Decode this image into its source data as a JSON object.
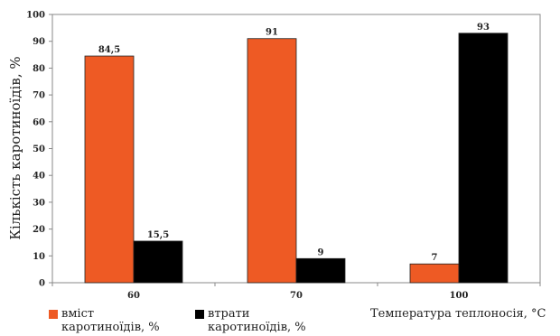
{
  "chart_data": {
    "type": "bar",
    "categories": [
      "60",
      "70",
      "100"
    ],
    "series": [
      {
        "name": "вміст каротиноїдів, %",
        "values": [
          84.5,
          91,
          7
        ],
        "labels": [
          "84,5",
          "91",
          "7"
        ],
        "color": "#ee5a24"
      },
      {
        "name": "втрати каротиноїдів, %",
        "values": [
          15.5,
          9,
          93
        ],
        "labels": [
          "15,5",
          "9",
          "93"
        ],
        "color": "#000000"
      }
    ],
    "ylabel": "Кількість каротиноїдів, %",
    "xlabel": "Температура теплоносія, °C",
    "ylim": [
      0,
      100
    ],
    "yticks": [
      0,
      10,
      20,
      30,
      40,
      50,
      60,
      70,
      80,
      90,
      100
    ],
    "grid": false,
    "legend_position": "bottom-left"
  },
  "legend": {
    "item1_line1": "вміст",
    "item1_line2": "каротиноїдів, %",
    "item2_line1": "втрати",
    "item2_line2": "каротиноїдів, %"
  },
  "x_title": "Температура теплоносія, °C"
}
